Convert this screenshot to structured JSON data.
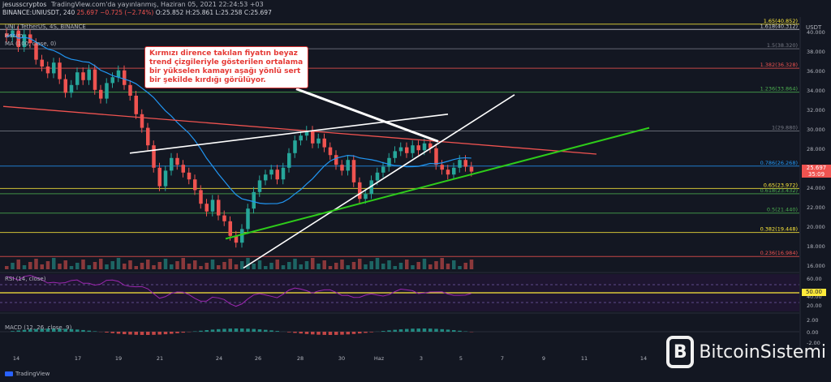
{
  "header": {
    "publisher": "jesusscryptos",
    "published_text": "TradingView.com'da yayınlanmış, Haziran 05, 2021 22:24:53 +03"
  },
  "ohlc": {
    "symbol": "BINANCE:UNIUSDT, 240",
    "last": "25.697",
    "change": "−0.725 (−2.74%)",
    "open": "O:25.852",
    "high": "H:25.861",
    "low": "L:25.258",
    "close": "C:25.697"
  },
  "legend": {
    "symbol_line": "UNI / TetherUS, 4S, BINANCE",
    "volume": "Hacim",
    "ma": "MA (100, close, 0)"
  },
  "annotation": "Kırmızı dirence takılan fiyatın beyaz trend çizgileriyle gösterilen ortalama bir yükselen kamayı aşağı yönlü sert bir şekilde kırdığı görülüyor.",
  "rsi": {
    "label": "RSI (14, close)",
    "tag": "50.00"
  },
  "macd": {
    "label": "MACD (12, 26, close, 9)"
  },
  "price_tag": {
    "value": "25.697",
    "time": "35:09"
  },
  "currency": "USDT",
  "footer": "TradingView",
  "brand": {
    "icon_letter": "B",
    "name": "BitcoinSistemi"
  },
  "chart_data": {
    "type": "candlestick",
    "title": "UNI / TetherUS, 4S, BINANCE",
    "y_ticks": [
      "40.000",
      "38.000",
      "36.000",
      "34.000",
      "32.000",
      "30.000",
      "28.000",
      "26.000",
      "24.000",
      "22.000",
      "20.000",
      "18.000",
      "16.000"
    ],
    "ylim": [
      15.5,
      41.5
    ],
    "x_ticks": [
      "14",
      "17",
      "19",
      "21",
      "24",
      "26",
      "28",
      "30",
      "Haz",
      "3",
      "5",
      "7",
      "9",
      "11",
      "14"
    ],
    "fib_levels": [
      {
        "label": "1.65(40.852)",
        "value": 40.852,
        "color": "#ffeb3b"
      },
      {
        "label": "1.618(40.312)",
        "value": 40.312,
        "color": "#d1d4dc"
      },
      {
        "label": "1.5(38.320)",
        "value": 38.32,
        "color": "#787b86"
      },
      {
        "label": "1.382(36.328)",
        "value": 36.328,
        "color": "#ef5350"
      },
      {
        "label": "1.236(33.864)",
        "value": 33.864,
        "color": "#4caf50"
      },
      {
        "label": "1(29.880)",
        "value": 29.88,
        "color": "#787b86"
      },
      {
        "label": "0.786(26.268)",
        "value": 26.268,
        "color": "#2196f3"
      },
      {
        "label": "0.65(23.972)",
        "value": 23.972,
        "color": "#ffeb3b"
      },
      {
        "label": "0.618(23.432)",
        "value": 23.432,
        "color": "#4caf50"
      },
      {
        "label": "0.5(21.440)",
        "value": 21.44,
        "color": "#4caf50"
      },
      {
        "label": "0.382(19.448)",
        "value": 19.448,
        "color": "#ffeb3b"
      },
      {
        "label": "0.236(16.984)",
        "value": 16.984,
        "color": "#ef5350"
      }
    ],
    "rsi_ticks": [
      "60.00",
      "40.00",
      "20.00"
    ],
    "macd_ticks": [
      "2.00",
      "0.00",
      "-2.00"
    ],
    "last_price": 25.697
  }
}
